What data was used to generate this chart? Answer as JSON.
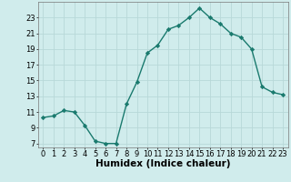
{
  "x": [
    0,
    1,
    2,
    3,
    4,
    5,
    6,
    7,
    8,
    9,
    10,
    11,
    12,
    13,
    14,
    15,
    16,
    17,
    18,
    19,
    20,
    21,
    22,
    23
  ],
  "y": [
    10.3,
    10.5,
    11.2,
    11.0,
    9.3,
    7.3,
    7.0,
    7.0,
    12.0,
    14.8,
    18.5,
    19.5,
    21.5,
    22.0,
    23.0,
    24.2,
    23.0,
    22.2,
    21.0,
    20.5,
    19.0,
    14.2,
    13.5,
    13.2
  ],
  "line_color": "#1a7a6e",
  "marker": "D",
  "marker_size": 2.2,
  "bg_color": "#d0ecec",
  "grid_color": "#b8d8d8",
  "xlabel": "Humidex (Indice chaleur)",
  "xlabel_fontsize": 7.5,
  "xlim": [
    -0.5,
    23.5
  ],
  "ylim": [
    6.5,
    25
  ],
  "yticks": [
    7,
    9,
    11,
    13,
    15,
    17,
    19,
    21,
    23
  ],
  "xticks": [
    0,
    1,
    2,
    3,
    4,
    5,
    6,
    7,
    8,
    9,
    10,
    11,
    12,
    13,
    14,
    15,
    16,
    17,
    18,
    19,
    20,
    21,
    22,
    23
  ],
  "tick_label_fontsize": 6.0,
  "linewidth": 1.0
}
